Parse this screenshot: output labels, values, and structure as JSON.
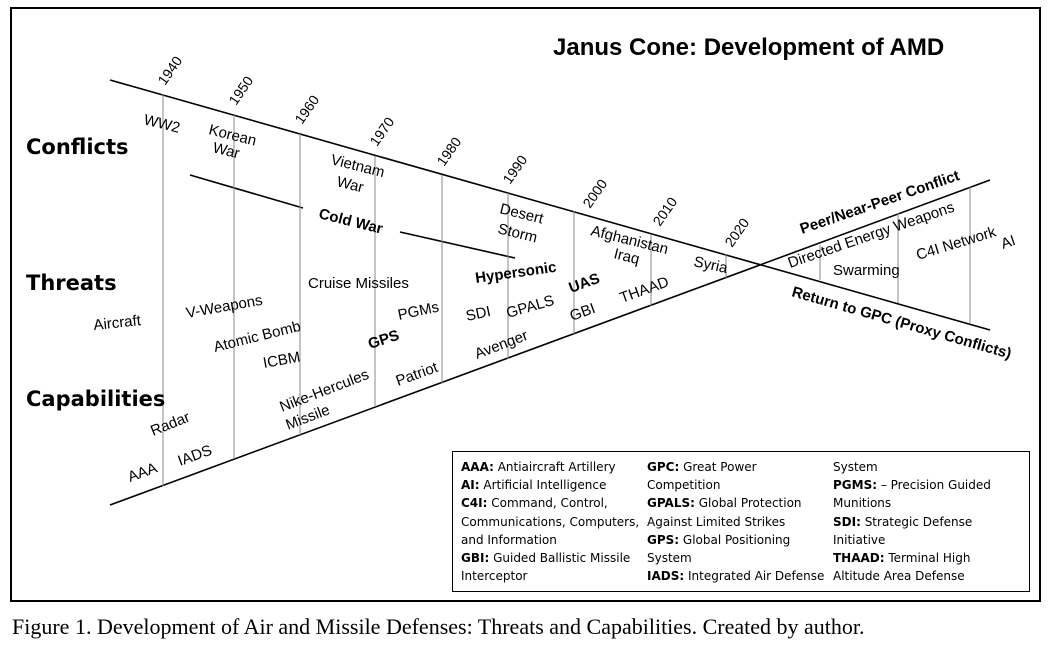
{
  "title": "Janus Cone: Development of AMD",
  "caption": "Figure 1. Development of Air and Missile Defenses: Threats and Capabilities. Created by author.",
  "rows": {
    "conflicts": "Conflicts",
    "threats": "Threats",
    "capabilities": "Capabilities"
  },
  "years": [
    "1940",
    "1950",
    "1960",
    "1970",
    "1980",
    "1990",
    "2000",
    "2010",
    "2020"
  ],
  "eras": {
    "cold_war": "Cold War",
    "peer": "Peer/Near-Peer Conflict",
    "return": "Return to GPC (Proxy Conflicts)"
  },
  "conflicts": {
    "ww2": "WW2",
    "korean_1": "Korean",
    "korean_2": "War",
    "vietnam_1": "Vietnam",
    "vietnam_2": "War",
    "desert_1": "Desert",
    "desert_2": "Storm",
    "afghanistan": "Afghanistan",
    "iraq": "Iraq",
    "syria": "Syria"
  },
  "threats": {
    "aircraft": "Aircraft",
    "v_weapons": "V-Weapons",
    "atomic_bomb": "Atomic Bomb",
    "icbm": "ICBM",
    "cruise": "Cruise Missiles",
    "pgms": "PGMs",
    "hypersonic": "Hypersonic",
    "uas": "UAS",
    "directed": "Directed Energy Weapons",
    "swarming": "Swarming",
    "c4i": "C4I Network",
    "ai": "AI"
  },
  "capabilities": {
    "aaa": "AAA",
    "radar": "Radar",
    "iads": "IADS",
    "nike_1": "Nike-Hercules",
    "nike_2": "Missile",
    "gps": "GPS",
    "patriot": "Patriot",
    "sdi": "SDI",
    "gpals": "GPALS",
    "avenger": "Avenger",
    "gbi": "GBI",
    "thaad": "THAAD"
  },
  "legend": {
    "col1": [
      {
        "term": "AAA:",
        "text": " Antiaircraft Artillery"
      },
      {
        "term": "AI:",
        "text": " Artificial Intelligence"
      },
      {
        "term": "C4I:",
        "text": " Command, Control,"
      },
      {
        "term": "",
        "text": "Communications, Computers,"
      },
      {
        "term": "",
        "text": "and Information"
      },
      {
        "term": "GBI:",
        "text": " Guided Ballistic Missile"
      },
      {
        "term": "",
        "text": "Interceptor"
      }
    ],
    "col2": [
      {
        "term": "GPC:",
        "text": " Great Power"
      },
      {
        "term": "",
        "text": "Competition"
      },
      {
        "term": "GPALS:",
        "text": " Global Protection"
      },
      {
        "term": "",
        "text": "Against Limited Strikes"
      },
      {
        "term": "GPS:",
        "text": " Global Positioning"
      },
      {
        "term": "",
        "text": "System"
      },
      {
        "term": "IADS:",
        "text": " Integrated Air Defense"
      }
    ],
    "col3": [
      {
        "term": "",
        "text": "System"
      },
      {
        "term": "PGMS:",
        "text": " – Precision Guided"
      },
      {
        "term": "",
        "text": "Munitions"
      },
      {
        "term": "SDI:",
        "text": " Strategic Defense"
      },
      {
        "term": "",
        "text": "Initiative"
      },
      {
        "term": "THAAD:",
        "text": " Terminal High"
      },
      {
        "term": "",
        "text": "Altitude Area Defense"
      }
    ]
  }
}
